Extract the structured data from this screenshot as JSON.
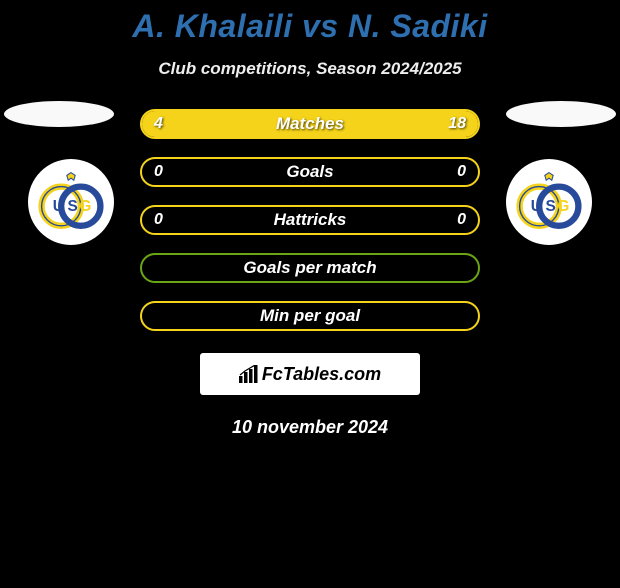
{
  "title_color": "#2e6fb0",
  "title": "A. Khalaili vs N. Sadiki",
  "subtitle": "Club competitions, Season 2024/2025",
  "date": "10 november 2024",
  "brand": "FcTables.com",
  "club_colors": {
    "yellow": "#f4d31a",
    "blue": "#274b9a"
  },
  "bars": [
    {
      "label": "Matches",
      "left_value": "4",
      "right_value": "18",
      "left_num": 4,
      "right_num": 18,
      "border_color": "#f4d31a",
      "left_fill_color": "#f4d31a",
      "right_fill_color": "#f4d31a",
      "show_values": true
    },
    {
      "label": "Goals",
      "left_value": "0",
      "right_value": "0",
      "left_num": 0,
      "right_num": 0,
      "border_color": "#f4d31a",
      "left_fill_color": "#f4d31a",
      "right_fill_color": "#f4d31a",
      "show_values": true
    },
    {
      "label": "Hattricks",
      "left_value": "0",
      "right_value": "0",
      "left_num": 0,
      "right_num": 0,
      "border_color": "#f4d31a",
      "left_fill_color": "#f4d31a",
      "right_fill_color": "#f4d31a",
      "show_values": true
    },
    {
      "label": "Goals per match",
      "left_value": "",
      "right_value": "",
      "left_num": 0,
      "right_num": 0,
      "border_color": "#6aa614",
      "left_fill_color": "#6aa614",
      "right_fill_color": "#6aa614",
      "show_values": false
    },
    {
      "label": "Min per goal",
      "left_value": "",
      "right_value": "",
      "left_num": 0,
      "right_num": 0,
      "border_color": "#f4d31a",
      "left_fill_color": "#f4d31a",
      "right_fill_color": "#f4d31a",
      "show_values": false
    }
  ]
}
